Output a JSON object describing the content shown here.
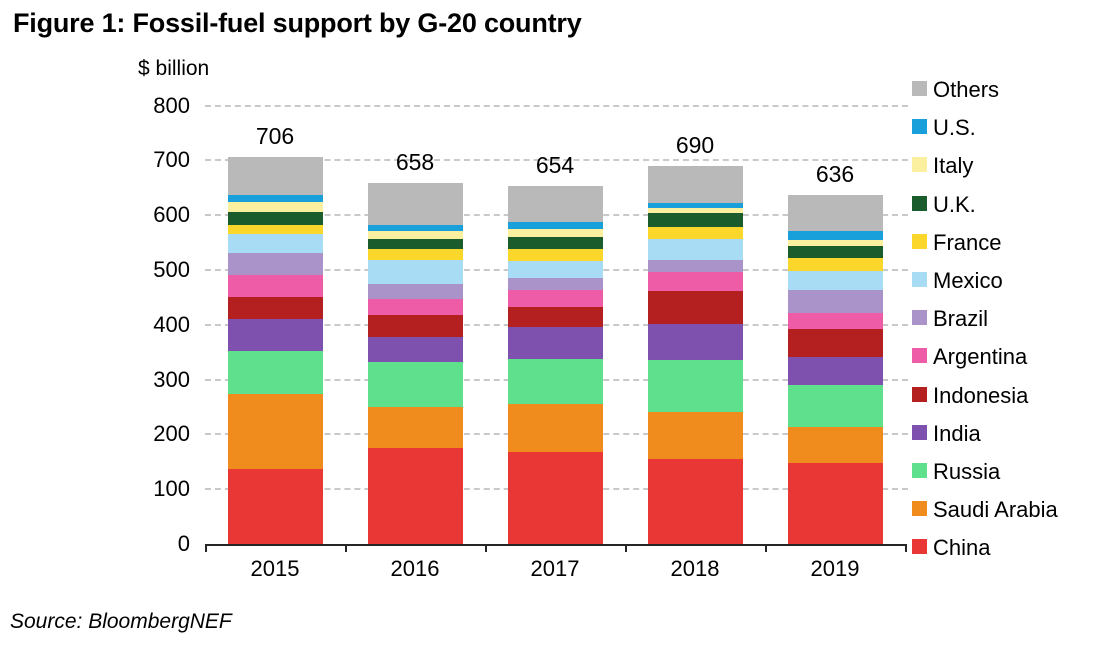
{
  "title": "Figure 1: Fossil-fuel support by G-20 country",
  "source": "Source: BloombergNEF",
  "chart_data": {
    "type": "bar",
    "stacked": true,
    "title": "Figure 1: Fossil-fuel support by G-20 country",
    "unit_label": "$ billion",
    "categories": [
      "2015",
      "2016",
      "2017",
      "2018",
      "2019"
    ],
    "totals": [
      706,
      658,
      654,
      690,
      636
    ],
    "y_axis": {
      "min": 0,
      "max": 800,
      "step": 100
    },
    "gridlines": "dashed-horizontal",
    "legend_position": "right",
    "legend_order_top_to_bottom": [
      "Others",
      "U.S.",
      "Italy",
      "U.K.",
      "France",
      "Mexico",
      "Brazil",
      "Argentina",
      "Indonesia",
      "India",
      "Russia",
      "Saudi Arabia",
      "China"
    ],
    "series": [
      {
        "name": "China",
        "color": "#e93735",
        "values": [
          137,
          176,
          168,
          155,
          147
        ]
      },
      {
        "name": "Saudi Arabia",
        "color": "#f08b1d",
        "values": [
          136,
          74,
          88,
          85,
          66
        ]
      },
      {
        "name": "Russia",
        "color": "#5fe08d",
        "values": [
          80,
          83,
          81,
          96,
          77
        ]
      },
      {
        "name": "India",
        "color": "#7e51ae",
        "values": [
          58,
          44,
          59,
          66,
          51
        ]
      },
      {
        "name": "Indonesia",
        "color": "#b41f20",
        "values": [
          39,
          41,
          37,
          59,
          51
        ]
      },
      {
        "name": "Argentina",
        "color": "#ee5ba6",
        "values": [
          41,
          29,
          31,
          35,
          29
        ]
      },
      {
        "name": "Brazil",
        "color": "#aa93c8",
        "values": [
          40,
          28,
          22,
          23,
          42
        ]
      },
      {
        "name": "Mexico",
        "color": "#a8dcf5",
        "values": [
          34,
          44,
          30,
          37,
          36
        ]
      },
      {
        "name": "France",
        "color": "#fcd72b",
        "values": [
          18,
          19,
          23,
          22,
          22
        ]
      },
      {
        "name": "U.K.",
        "color": "#1a5c2b",
        "values": [
          23,
          18,
          21,
          26,
          23
        ]
      },
      {
        "name": "Italy",
        "color": "#faf0a0",
        "values": [
          18,
          15,
          15,
          10,
          11
        ]
      },
      {
        "name": "U.S.",
        "color": "#199fda",
        "values": [
          12,
          12,
          12,
          9,
          16
        ]
      },
      {
        "name": "Others",
        "color": "#b9b9b9",
        "values": [
          70,
          75,
          67,
          67,
          65
        ]
      }
    ]
  }
}
